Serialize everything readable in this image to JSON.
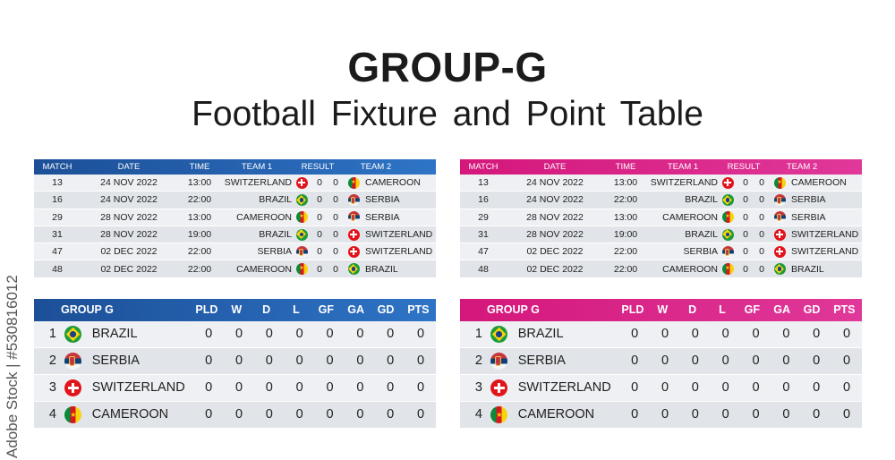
{
  "title": "GROUP-G",
  "subtitle": "Football Fixture  and  Point  Table",
  "watermark": "Adobe Stock | #530816012",
  "colors": {
    "blue_accent": "#2e74c6",
    "pink_accent": "#e0389a"
  },
  "fixture": {
    "headers": {
      "match": "MATCH",
      "date": "DATE",
      "time": "TIME",
      "team1": "TEAM 1",
      "result": "RESULT",
      "team2": "TEAM 2"
    },
    "rows": [
      {
        "match": "13",
        "date": "24 NOV 2022",
        "time": "13:00",
        "team1": "SWITZERLAND",
        "flag1": "switzerland-flag-icon",
        "score1": "0",
        "score2": "0",
        "flag2": "cameroon-flag-icon",
        "team2": "CAMEROON"
      },
      {
        "match": "16",
        "date": "24 NOV 2022",
        "time": "22:00",
        "team1": "BRAZIL",
        "flag1": "brazil-flag-icon",
        "score1": "0",
        "score2": "0",
        "flag2": "serbia-flag-icon",
        "team2": "SERBIA"
      },
      {
        "match": "29",
        "date": "28 NOV 2022",
        "time": "13:00",
        "team1": "CAMEROON",
        "flag1": "cameroon-flag-icon",
        "score1": "0",
        "score2": "0",
        "flag2": "serbia-flag-icon",
        "team2": "SERBIA"
      },
      {
        "match": "31",
        "date": "28 NOV 2022",
        "time": "19:00",
        "team1": "BRAZIL",
        "flag1": "brazil-flag-icon",
        "score1": "0",
        "score2": "0",
        "flag2": "switzerland-flag-icon",
        "team2": "SWITZERLAND"
      },
      {
        "match": "47",
        "date": "02 DEC 2022",
        "time": "22:00",
        "team1": "SERBIA",
        "flag1": "serbia-flag-icon",
        "score1": "0",
        "score2": "0",
        "flag2": "switzerland-flag-icon",
        "team2": "SWITZERLAND"
      },
      {
        "match": "48",
        "date": "02 DEC 2022",
        "time": "22:00",
        "team1": "CAMEROON",
        "flag1": "cameroon-flag-icon",
        "score1": "0",
        "score2": "0",
        "flag2": "brazil-flag-icon",
        "team2": "BRAZIL"
      }
    ]
  },
  "points": {
    "headers": {
      "group": "GROUP G",
      "pld": "PLD",
      "w": "W",
      "d": "D",
      "l": "L",
      "gf": "GF",
      "ga": "GA",
      "gd": "GD",
      "pts": "PTS"
    },
    "rows": [
      {
        "pos": "1",
        "flag": "brazil-flag-icon",
        "team": "BRAZIL",
        "pld": "0",
        "w": "0",
        "d": "0",
        "l": "0",
        "gf": "0",
        "ga": "0",
        "gd": "0",
        "pts": "0"
      },
      {
        "pos": "2",
        "flag": "serbia-flag-icon",
        "team": "SERBIA",
        "pld": "0",
        "w": "0",
        "d": "0",
        "l": "0",
        "gf": "0",
        "ga": "0",
        "gd": "0",
        "pts": "0"
      },
      {
        "pos": "3",
        "flag": "switzerland-flag-icon",
        "team": "SWITZERLAND",
        "pld": "0",
        "w": "0",
        "d": "0",
        "l": "0",
        "gf": "0",
        "ga": "0",
        "gd": "0",
        "pts": "0"
      },
      {
        "pos": "4",
        "flag": "cameroon-flag-icon",
        "team": "CAMEROON",
        "pld": "0",
        "w": "0",
        "d": "0",
        "l": "0",
        "gf": "0",
        "ga": "0",
        "gd": "0",
        "pts": "0"
      }
    ]
  }
}
